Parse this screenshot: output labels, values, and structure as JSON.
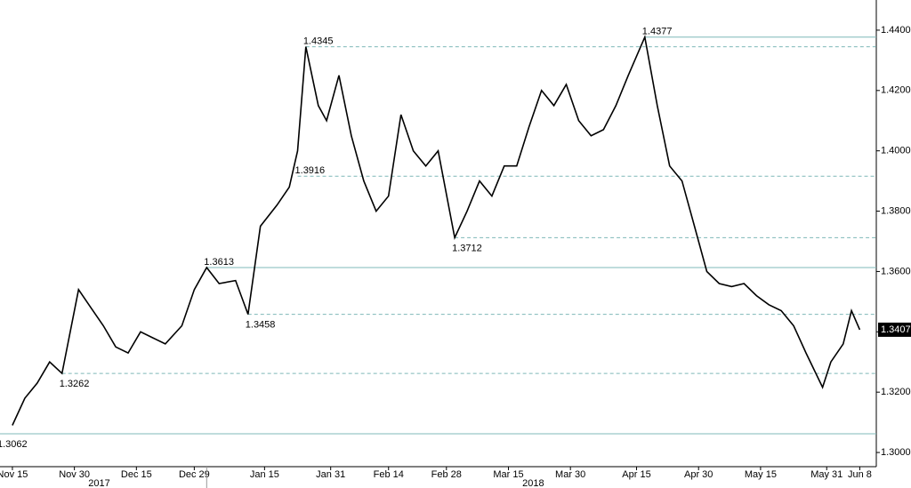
{
  "chart_data": {
    "type": "line",
    "x": [
      "2017-11-15",
      "2017-11-18",
      "2017-11-21",
      "2017-11-24",
      "2017-11-27",
      "2017-12-01",
      "2017-12-04",
      "2017-12-07",
      "2017-12-10",
      "2017-12-13",
      "2017-12-16",
      "2017-12-19",
      "2017-12-22",
      "2017-12-26",
      "2017-12-29",
      "2018-01-01",
      "2018-01-04",
      "2018-01-08",
      "2018-01-11",
      "2018-01-14",
      "2018-01-18",
      "2018-01-21",
      "2018-01-23",
      "2018-01-25",
      "2018-01-28",
      "2018-01-30",
      "2018-02-02",
      "2018-02-05",
      "2018-02-08",
      "2018-02-11",
      "2018-02-14",
      "2018-02-17",
      "2018-02-20",
      "2018-02-23",
      "2018-02-26",
      "2018-03-02",
      "2018-03-05",
      "2018-03-08",
      "2018-03-11",
      "2018-03-14",
      "2018-03-17",
      "2018-03-20",
      "2018-03-23",
      "2018-03-26",
      "2018-03-29",
      "2018-04-01",
      "2018-04-04",
      "2018-04-07",
      "2018-04-10",
      "2018-04-13",
      "2018-04-17",
      "2018-04-20",
      "2018-04-23",
      "2018-04-26",
      "2018-04-29",
      "2018-05-02",
      "2018-05-05",
      "2018-05-08",
      "2018-05-11",
      "2018-05-14",
      "2018-05-17",
      "2018-05-20",
      "2018-05-23",
      "2018-05-26",
      "2018-05-30",
      "2018-06-01",
      "2018-06-04",
      "2018-06-06",
      "2018-06-08"
    ],
    "series": [
      {
        "color": "#000000",
        "values": [
          1.309,
          1.318,
          1.323,
          1.33,
          1.3262,
          1.354,
          1.348,
          1.342,
          1.335,
          1.333,
          1.34,
          1.338,
          1.336,
          1.342,
          1.354,
          1.3613,
          1.356,
          1.357,
          1.3458,
          1.375,
          1.382,
          1.388,
          1.4,
          1.4345,
          1.415,
          1.41,
          1.425,
          1.405,
          1.39,
          1.38,
          1.385,
          1.412,
          1.4,
          1.395,
          1.4,
          1.3712,
          1.38,
          1.39,
          1.385,
          1.395,
          1.395,
          1.408,
          1.42,
          1.415,
          1.422,
          1.41,
          1.405,
          1.407,
          1.415,
          1.425,
          1.4377,
          1.415,
          1.395,
          1.39,
          1.375,
          1.36,
          1.356,
          1.355,
          1.356,
          1.352,
          1.349,
          1.347,
          1.342,
          1.333,
          1.3216,
          1.33,
          1.336,
          1.347,
          1.3407
        ]
      }
    ],
    "levels": [
      {
        "value": 1.4377,
        "x": "2018-04-17",
        "line": "solid"
      },
      {
        "value": 1.4345,
        "x": "2018-01-25",
        "line": "dashed"
      },
      {
        "value": 1.3916,
        "x": "2018-01-23",
        "line": "dashed"
      },
      {
        "value": 1.3712,
        "x": "2018-03-02",
        "line": "dashed"
      },
      {
        "value": 1.3613,
        "x": "2018-01-01",
        "line": "solid"
      },
      {
        "value": 1.3458,
        "x": "2018-01-11",
        "line": "dashed"
      },
      {
        "value": 1.3262,
        "x": "2017-11-27",
        "line": "dashed"
      },
      {
        "value": 1.3062,
        "x": "2017-11-12",
        "line": "solid"
      }
    ],
    "xlim": [
      "2017-11-12",
      "2018-06-12"
    ],
    "xticks": [
      {
        "value": "2017-11-15",
        "label": "Nov 15"
      },
      {
        "value": "2017-11-30",
        "label": "Nov 30"
      },
      {
        "value": "2017-12-15",
        "label": "Dec 15"
      },
      {
        "value": "2017-12-29",
        "label": "Dec 29"
      },
      {
        "value": "2018-01-15",
        "label": "Jan 15"
      },
      {
        "value": "2018-01-31",
        "label": "Jan 31"
      },
      {
        "value": "2018-02-14",
        "label": "Feb 14"
      },
      {
        "value": "2018-02-28",
        "label": "Feb 28"
      },
      {
        "value": "2018-03-15",
        "label": "Mar 15"
      },
      {
        "value": "2018-03-30",
        "label": "Mar 30"
      },
      {
        "value": "2018-04-15",
        "label": "Apr 15"
      },
      {
        "value": "2018-04-30",
        "label": "Apr 30"
      },
      {
        "value": "2018-05-15",
        "label": "May 15"
      },
      {
        "value": "2018-05-31",
        "label": "May 31"
      },
      {
        "value": "2018-06-08",
        "label": "Jun 8"
      }
    ],
    "year_labels": [
      {
        "value": "2017-12-06",
        "label": "2017"
      },
      {
        "value": "2018-03-21",
        "label": "2018"
      }
    ],
    "ylim": [
      1.2953,
      1.45
    ],
    "yticks": [
      {
        "value": 1.3,
        "label": "1.3000"
      },
      {
        "value": 1.32,
        "label": "1.3200"
      },
      {
        "value": 1.34,
        "label": "1.3400"
      },
      {
        "value": 1.36,
        "label": "1.3600"
      },
      {
        "value": 1.38,
        "label": "1.3800"
      },
      {
        "value": 1.4,
        "label": "1.4000"
      },
      {
        "value": 1.42,
        "label": "1.4200"
      },
      {
        "value": 1.44,
        "label": "1.4400"
      }
    ]
  }
}
